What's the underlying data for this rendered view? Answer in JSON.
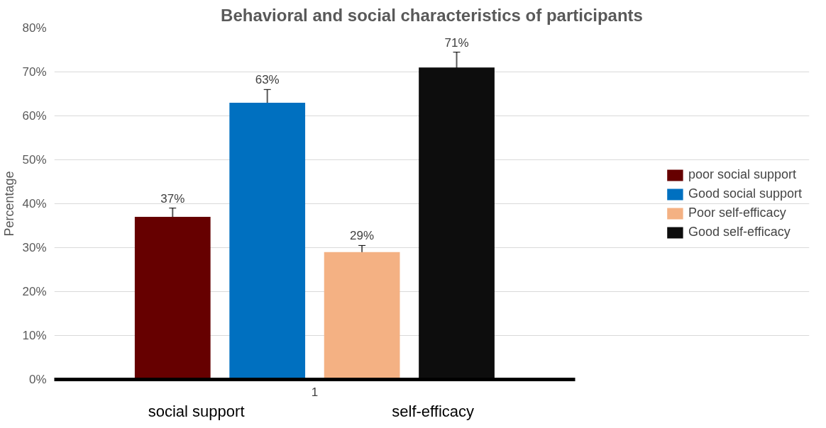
{
  "chart_data": {
    "type": "bar",
    "title": "Behavioral and social characteristics of participants",
    "ylabel": "Percentage",
    "categories": [
      "1"
    ],
    "series": [
      {
        "name": "poor social support",
        "color": "#660000",
        "values": [
          37
        ],
        "errors": [
          2
        ],
        "value_labels": [
          "37%"
        ]
      },
      {
        "name": "Good social support",
        "color": "#0070c0",
        "values": [
          63
        ],
        "errors": [
          3
        ],
        "value_labels": [
          "63%"
        ]
      },
      {
        "name": "Poor self-efficacy",
        "color": "#f4b183",
        "values": [
          29
        ],
        "errors": [
          1.5
        ],
        "value_labels": [
          "29%"
        ]
      },
      {
        "name": "Good self-efficacy",
        "color": "#0d0d0d",
        "values": [
          71
        ],
        "errors": [
          3.5
        ],
        "value_labels": [
          "71%"
        ]
      }
    ],
    "ylim": [
      0,
      80
    ],
    "yticks": [
      {
        "value": 0,
        "label": "0%"
      },
      {
        "value": 10,
        "label": "10%"
      },
      {
        "value": 20,
        "label": "20%"
      },
      {
        "value": 30,
        "label": "30%"
      },
      {
        "value": 40,
        "label": "40%"
      },
      {
        "value": 50,
        "label": "50%"
      },
      {
        "value": 60,
        "label": "60%"
      },
      {
        "value": 70,
        "label": "70%"
      },
      {
        "value": 80,
        "label": "80%"
      }
    ],
    "annotations": [
      "social support",
      "self-efficacy"
    ],
    "grid": "y",
    "legend": "right"
  }
}
